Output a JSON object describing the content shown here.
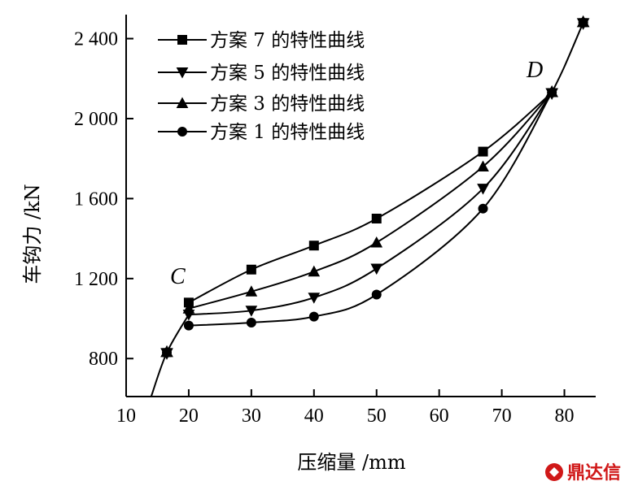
{
  "chart_data": {
    "type": "line",
    "title": "",
    "xlabel": "压缩量 /mm",
    "ylabel": "车钩力 /kN",
    "xlim": [
      10,
      85
    ],
    "ylim": [
      610,
      2520
    ],
    "xticks": [
      10,
      20,
      30,
      40,
      50,
      60,
      70,
      80
    ],
    "xtick_labels": [
      "10",
      "20",
      "30",
      "40",
      "50",
      "60",
      "70",
      "80"
    ],
    "yticks": [
      800,
      1200,
      1600,
      2000,
      2400
    ],
    "ytick_labels": [
      "800",
      "1 200",
      "1 600",
      "2 000",
      "2 400"
    ],
    "grid": false,
    "legend_position": "top-left",
    "common_path": {
      "start": [
        [
          14,
          610
        ],
        [
          16.5,
          830
        ],
        [
          20,
          1020
        ]
      ],
      "end": [
        [
          78,
          2130
        ],
        [
          80,
          2260
        ],
        [
          83,
          2480
        ]
      ]
    },
    "series": [
      {
        "name": "方案 7 的特性曲线",
        "marker": "square",
        "x": [
          16.5,
          20,
          30,
          40,
          50,
          67,
          78,
          83
        ],
        "y": [
          830,
          1080,
          1245,
          1365,
          1500,
          1835,
          2130,
          2480
        ]
      },
      {
        "name": "方案 5 的特性曲线",
        "marker": "triangle-down",
        "x": [
          16.5,
          20,
          30,
          40,
          50,
          67,
          78,
          83
        ],
        "y": [
          830,
          1020,
          1040,
          1105,
          1250,
          1650,
          2130,
          2480
        ]
      },
      {
        "name": "方案 3 的特性曲线",
        "marker": "triangle-up",
        "x": [
          16.5,
          20,
          30,
          40,
          50,
          67,
          78,
          83
        ],
        "y": [
          830,
          1050,
          1135,
          1235,
          1380,
          1760,
          2130,
          2480
        ]
      },
      {
        "name": "方案 1 的特性曲线",
        "marker": "circle",
        "x": [
          16.5,
          20,
          30,
          40,
          50,
          67,
          78,
          83
        ],
        "y": [
          830,
          965,
          980,
          1010,
          1120,
          1550,
          2130,
          2480
        ]
      }
    ],
    "annotations": [
      {
        "text": "C",
        "x": 19,
        "y": 1200
      },
      {
        "text": "D",
        "x": 75,
        "y": 2240
      }
    ]
  },
  "watermark": {
    "text": "鼎达信",
    "color": "#d01818"
  }
}
